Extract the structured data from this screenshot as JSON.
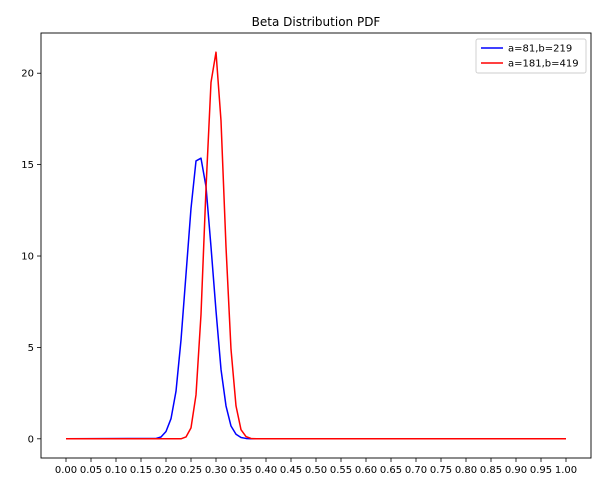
{
  "chart_data": {
    "type": "line",
    "title": "Beta Distribution PDF",
    "xlabel": "",
    "ylabel": "",
    "xlim": [
      -0.05,
      1.05
    ],
    "ylim": [
      -1.05,
      22.2
    ],
    "xticks": [
      0.0,
      0.05,
      0.1,
      0.15,
      0.2,
      0.25,
      0.3,
      0.35,
      0.4,
      0.45,
      0.5,
      0.55,
      0.6,
      0.65,
      0.7,
      0.75,
      0.8,
      0.85,
      0.9,
      0.95,
      1.0
    ],
    "xtick_labels": [
      "0.00",
      "0.05",
      "0.10",
      "0.15",
      "0.20",
      "0.25",
      "0.30",
      "0.35",
      "0.40",
      "0.45",
      "0.50",
      "0.55",
      "0.60",
      "0.65",
      "0.70",
      "0.75",
      "0.80",
      "0.85",
      "0.90",
      "0.95",
      "1.00"
    ],
    "yticks": [
      0,
      5,
      10,
      15,
      20
    ],
    "ytick_labels": [
      "0",
      "5",
      "10",
      "15",
      "20"
    ],
    "grid": false,
    "legend_position": "top-right",
    "series": [
      {
        "name": "a=81,b=219",
        "color": "#0000ff",
        "x": [
          0.0,
          0.18,
          0.19,
          0.2,
          0.21,
          0.22,
          0.23,
          0.24,
          0.25,
          0.26,
          0.27,
          0.28,
          0.29,
          0.3,
          0.31,
          0.32,
          0.33,
          0.34,
          0.35,
          0.36,
          0.37,
          1.0
        ],
        "y": [
          0,
          0.02,
          0.1,
          0.4,
          1.1,
          2.6,
          5.4,
          9.0,
          12.6,
          15.2,
          15.35,
          13.8,
          10.5,
          7.0,
          3.8,
          1.8,
          0.7,
          0.25,
          0.07,
          0.02,
          0,
          0
        ]
      },
      {
        "name": "a=181,b=419",
        "color": "#ff0000",
        "x": [
          0.0,
          0.23,
          0.24,
          0.25,
          0.26,
          0.27,
          0.28,
          0.29,
          0.3,
          0.31,
          0.32,
          0.33,
          0.34,
          0.35,
          0.36,
          0.37,
          0.38,
          1.0
        ],
        "y": [
          0,
          0.0,
          0.1,
          0.6,
          2.4,
          6.8,
          13.7,
          19.5,
          21.15,
          17.4,
          10.5,
          4.9,
          1.8,
          0.5,
          0.12,
          0.02,
          0,
          0
        ]
      }
    ]
  }
}
